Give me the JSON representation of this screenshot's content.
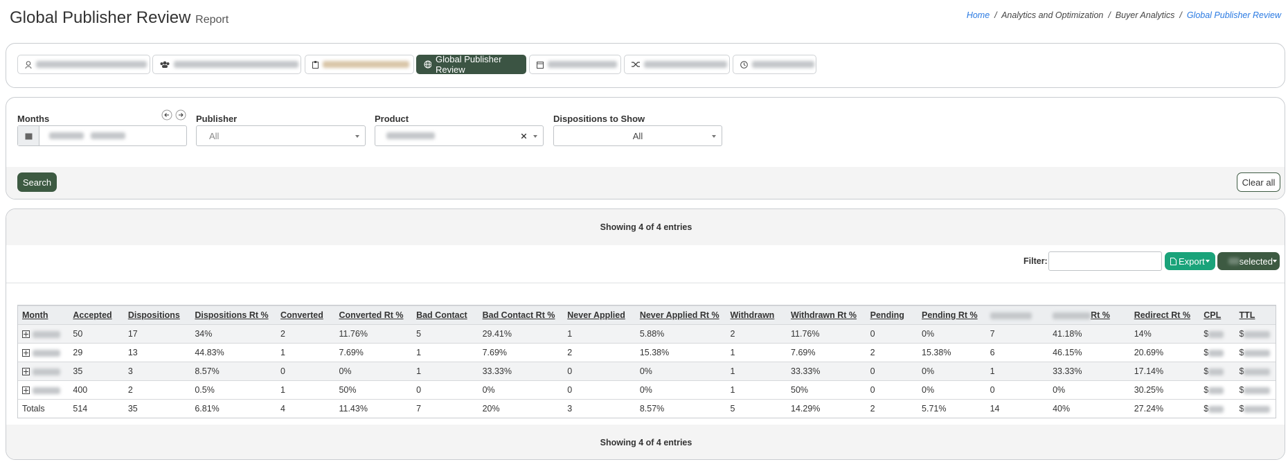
{
  "header": {
    "title": "Global Publisher Review",
    "subtitle": "Report"
  },
  "breadcrumb": [
    "Home",
    "Analytics and Optimization",
    "Buyer Analytics",
    "Global Publisher Review"
  ],
  "tabs": {
    "active": "Global Publisher Review"
  },
  "filters": {
    "months": {
      "label": "Months"
    },
    "publisher": {
      "label": "Publisher",
      "value": "All"
    },
    "product": {
      "label": "Product"
    },
    "dispositions": {
      "label": "Dispositions to Show",
      "value": "All"
    },
    "search": "Search",
    "clear": "Clear all"
  },
  "table": {
    "info": "Showing 4 of 4 entries",
    "filter_label": "Filter:",
    "export": "Export",
    "selected": "selected",
    "columns": [
      "Month",
      "Accepted",
      "Dispositions",
      "Dispositions Rt %",
      "Converted",
      "Converted Rt %",
      "Bad Contact",
      "Bad Contact Rt %",
      "Never Applied",
      "Never Applied Rt %",
      "Withdrawn",
      "Withdrawn Rt %",
      "Pending",
      "Pending Rt %",
      null,
      "Rt %",
      "Redirect Rt %",
      "CPL",
      "TTL"
    ],
    "rows": [
      [
        null,
        "50",
        "17",
        "34%",
        "2",
        "11.76%",
        "5",
        "29.41%",
        "1",
        "5.88%",
        "2",
        "11.76%",
        "0",
        "0%",
        "7",
        "41.18%",
        "14%",
        "$",
        "$"
      ],
      [
        null,
        "29",
        "13",
        "44.83%",
        "1",
        "7.69%",
        "1",
        "7.69%",
        "2",
        "15.38%",
        "1",
        "7.69%",
        "2",
        "15.38%",
        "6",
        "46.15%",
        "20.69%",
        "$",
        "$"
      ],
      [
        null,
        "35",
        "3",
        "8.57%",
        "0",
        "0%",
        "1",
        "33.33%",
        "0",
        "0%",
        "1",
        "33.33%",
        "0",
        "0%",
        "1",
        "33.33%",
        "17.14%",
        "$",
        "$"
      ],
      [
        null,
        "400",
        "2",
        "0.5%",
        "1",
        "50%",
        "0",
        "0%",
        "0",
        "0%",
        "1",
        "50%",
        "0",
        "0%",
        "0",
        "0%",
        "30.25%",
        "$",
        "$"
      ]
    ],
    "totals": [
      "Totals",
      "514",
      "35",
      "6.81%",
      "4",
      "11.43%",
      "7",
      "20%",
      "3",
      "8.57%",
      "5",
      "14.29%",
      "2",
      "5.71%",
      "14",
      "40%",
      "27.24%",
      "$",
      "$"
    ]
  }
}
